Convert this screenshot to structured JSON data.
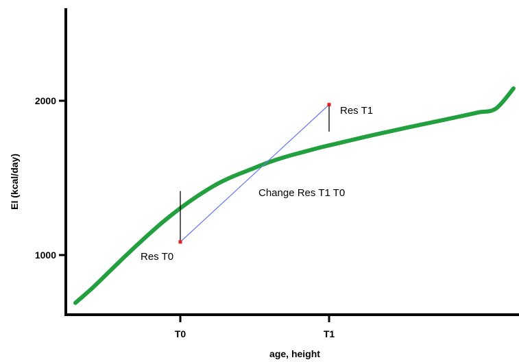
{
  "chart_data": {
    "type": "line",
    "title": "",
    "xlabel": "age, height",
    "ylabel": "EI (kcal/day)",
    "ylim": [
      560,
      2600
    ],
    "x_ticks": [
      "T0",
      "T1"
    ],
    "y_ticks": [
      {
        "value": 1000,
        "label": "1000"
      },
      {
        "value": 2000,
        "label": "2000"
      }
    ],
    "grid": false,
    "curve": {
      "color": "#22a040",
      "x_positions": [
        0,
        0.1,
        0.2,
        0.3,
        0.4,
        0.5,
        0.6,
        0.7,
        0.8,
        0.9,
        1.0,
        1.1,
        1.2,
        1.3,
        1.4,
        1.5,
        1.6,
        1.7,
        1.8,
        1.9,
        2.0,
        2.1,
        2.2,
        2.3,
        2.4,
        2.5
      ],
      "values": [
        690,
        790,
        900,
        1010,
        1115,
        1215,
        1305,
        1385,
        1455,
        1510,
        1555,
        1600,
        1637,
        1668,
        1698,
        1725,
        1752,
        1778,
        1803,
        1828,
        1852,
        1876,
        1900,
        1925,
        1950,
        2080
      ]
    },
    "points": [
      {
        "id": "res-t0",
        "label": "Res T0",
        "x_tick": "T0",
        "value": 1085,
        "curve_value": 1415,
        "color": "#e02020"
      },
      {
        "id": "res-t1",
        "label": "Res T1",
        "x_tick": "T1",
        "value": 1975,
        "curve_value": 1800,
        "color": "#e02020"
      }
    ],
    "change_line": {
      "label": "Change Res T1 T0",
      "color": "#6677ee"
    }
  }
}
